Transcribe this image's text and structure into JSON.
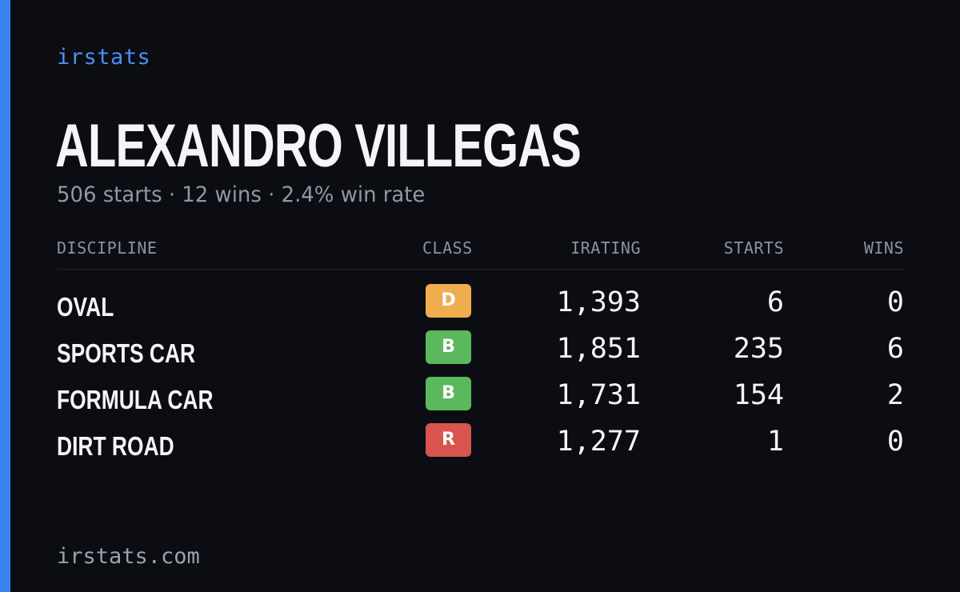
{
  "brand": "irstats",
  "player": {
    "name": "ALEXANDRO VILLEGAS",
    "summary": "506 starts · 12 wins · 2.4% win rate"
  },
  "table": {
    "headers": {
      "discipline": "DISCIPLINE",
      "class": "CLASS",
      "irating": "IRATING",
      "starts": "STARTS",
      "wins": "WINS"
    },
    "rows": [
      {
        "discipline": "OVAL",
        "class": "D",
        "class_color": "#f0ad4e",
        "irating": "1,393",
        "starts": "6",
        "wins": "0"
      },
      {
        "discipline": "SPORTS CAR",
        "class": "B",
        "class_color": "#5cb85c",
        "irating": "1,851",
        "starts": "235",
        "wins": "6"
      },
      {
        "discipline": "FORMULA CAR",
        "class": "B",
        "class_color": "#5cb85c",
        "irating": "1,731",
        "starts": "154",
        "wins": "2"
      },
      {
        "discipline": "DIRT ROAD",
        "class": "R",
        "class_color": "#d9534f",
        "irating": "1,277",
        "starts": "1",
        "wins": "0"
      }
    ]
  },
  "footer": {
    "domain": "irstats.com"
  },
  "colors": {
    "background": "#0b0d12",
    "accent": "#3a84f2",
    "brand_text": "#4d8ff4"
  }
}
